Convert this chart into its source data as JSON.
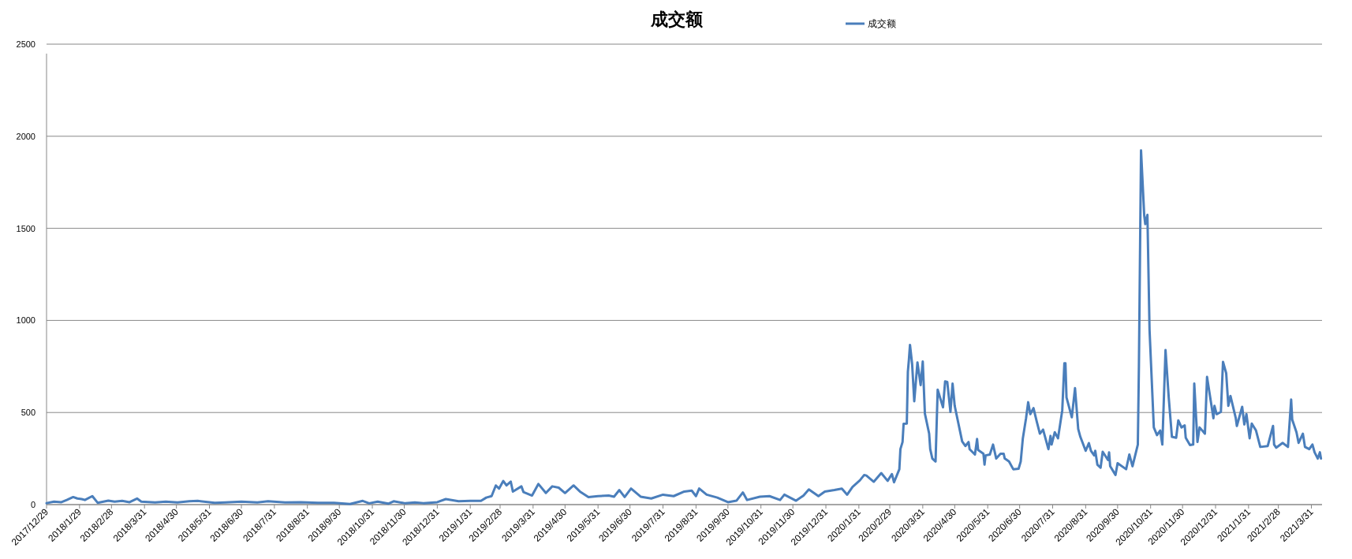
{
  "chart_data": {
    "type": "line",
    "title": "成交额",
    "legend": "top",
    "grid": "y",
    "xlim": [
      "2017-12-29",
      "2021-04-10"
    ],
    "ylim": [
      0,
      2500
    ],
    "yticks": [
      0,
      500,
      1000,
      1500,
      2000,
      2500
    ],
    "xticks": [
      {
        "value": "2017-12-29",
        "label": "2017/12/29"
      },
      {
        "value": "2018-01-29",
        "label": "2018/1/29"
      },
      {
        "value": "2018-02-28",
        "label": "2018/2/28"
      },
      {
        "value": "2018-03-31",
        "label": "2018/3/31"
      },
      {
        "value": "2018-04-30",
        "label": "2018/4/30"
      },
      {
        "value": "2018-05-31",
        "label": "2018/5/31"
      },
      {
        "value": "2018-06-30",
        "label": "2018/6/30"
      },
      {
        "value": "2018-07-31",
        "label": "2018/7/31"
      },
      {
        "value": "2018-08-31",
        "label": "2018/8/31"
      },
      {
        "value": "2018-09-30",
        "label": "2018/9/30"
      },
      {
        "value": "2018-10-31",
        "label": "2018/10/31"
      },
      {
        "value": "2018-11-30",
        "label": "2018/11/30"
      },
      {
        "value": "2018-12-31",
        "label": "2018/12/31"
      },
      {
        "value": "2019-01-31",
        "label": "2019/1/31"
      },
      {
        "value": "2019-02-28",
        "label": "2019/2/28"
      },
      {
        "value": "2019-03-31",
        "label": "2019/3/31"
      },
      {
        "value": "2019-04-30",
        "label": "2019/4/30"
      },
      {
        "value": "2019-05-31",
        "label": "2019/5/31"
      },
      {
        "value": "2019-06-30",
        "label": "2019/6/30"
      },
      {
        "value": "2019-07-31",
        "label": "2019/7/31"
      },
      {
        "value": "2019-08-31",
        "label": "2019/8/31"
      },
      {
        "value": "2019-09-30",
        "label": "2019/9/30"
      },
      {
        "value": "2019-10-31",
        "label": "2019/10/31"
      },
      {
        "value": "2019-11-30",
        "label": "2019/11/30"
      },
      {
        "value": "2019-12-31",
        "label": "2019/12/31"
      },
      {
        "value": "2020-01-31",
        "label": "2020/1/31"
      },
      {
        "value": "2020-02-29",
        "label": "2020/2/29"
      },
      {
        "value": "2020-03-31",
        "label": "2020/3/31"
      },
      {
        "value": "2020-04-30",
        "label": "2020/4/30"
      },
      {
        "value": "2020-05-31",
        "label": "2020/5/31"
      },
      {
        "value": "2020-06-30",
        "label": "2020/6/30"
      },
      {
        "value": "2020-07-31",
        "label": "2020/7/31"
      },
      {
        "value": "2020-08-31",
        "label": "2020/8/31"
      },
      {
        "value": "2020-09-30",
        "label": "2020/9/30"
      },
      {
        "value": "2020-10-31",
        "label": "2020/10/31"
      },
      {
        "value": "2020-11-30",
        "label": "2020/11/30"
      },
      {
        "value": "2020-12-31",
        "label": "2020/12/31"
      },
      {
        "value": "2021-01-31",
        "label": "2021/1/31"
      },
      {
        "value": "2021-02-28",
        "label": "2021/2/28"
      },
      {
        "value": "2021-03-31",
        "label": "2021/3/31"
      }
    ],
    "series": [
      {
        "name": "成交额",
        "color": "#4a7ebb",
        "x": [
          "2017-12-29",
          "2018-01-05",
          "2018-01-12",
          "2018-01-17",
          "2018-01-23",
          "2018-01-27",
          "2018-01-31",
          "2018-02-03",
          "2018-02-10",
          "2018-02-15",
          "2018-02-25",
          "2018-03-03",
          "2018-03-10",
          "2018-03-17",
          "2018-03-24",
          "2018-03-28",
          "2018-04-10",
          "2018-04-20",
          "2018-05-01",
          "2018-05-12",
          "2018-05-20",
          "2018-06-05",
          "2018-06-15",
          "2018-06-30",
          "2018-07-15",
          "2018-07-25",
          "2018-08-10",
          "2018-08-25",
          "2018-09-10",
          "2018-09-25",
          "2018-10-10",
          "2018-10-22",
          "2018-10-28",
          "2018-11-05",
          "2018-11-15",
          "2018-11-20",
          "2018-12-01",
          "2018-12-10",
          "2018-12-18",
          "2018-12-31",
          "2019-01-08",
          "2019-01-20",
          "2019-01-31",
          "2019-02-10",
          "2019-02-15",
          "2019-02-20",
          "2019-02-24",
          "2019-02-27",
          "2019-03-03",
          "2019-03-06",
          "2019-03-10",
          "2019-03-12",
          "2019-03-20",
          "2019-03-22",
          "2019-03-30",
          "2019-04-05",
          "2019-04-12",
          "2019-04-18",
          "2019-04-24",
          "2019-04-30",
          "2019-05-08",
          "2019-05-14",
          "2019-05-22",
          "2019-05-31",
          "2019-06-10",
          "2019-06-15",
          "2019-06-20",
          "2019-06-25",
          "2019-07-01",
          "2019-07-10",
          "2019-07-20",
          "2019-07-31",
          "2019-08-10",
          "2019-08-20",
          "2019-08-27",
          "2019-08-31",
          "2019-09-03",
          "2019-09-10",
          "2019-09-20",
          "2019-09-30",
          "2019-10-08",
          "2019-10-14",
          "2019-10-18",
          "2019-10-30",
          "2019-11-08",
          "2019-11-18",
          "2019-11-22",
          "2019-12-03",
          "2019-12-10",
          "2019-12-15",
          "2019-12-24",
          "2019-12-30",
          "2020-01-08",
          "2020-01-15",
          "2020-01-20",
          "2020-01-25",
          "2020-02-01",
          "2020-02-05",
          "2020-02-07",
          "2020-02-14",
          "2020-02-21",
          "2020-02-27",
          "2020-03-02",
          "2020-03-04",
          "2020-03-09",
          "2020-03-10",
          "2020-03-12",
          "2020-03-13",
          "2020-03-16",
          "2020-03-17",
          "2020-03-18",
          "2020-03-19",
          "2020-03-21",
          "2020-03-23",
          "2020-03-26",
          "2020-03-29",
          "2020-03-31",
          "2020-04-02",
          "2020-04-06",
          "2020-04-07",
          "2020-04-09",
          "2020-04-12",
          "2020-04-14",
          "2020-04-19",
          "2020-04-21",
          "2020-04-23",
          "2020-04-26",
          "2020-04-28",
          "2020-04-30",
          "2020-05-07",
          "2020-05-10",
          "2020-05-13",
          "2020-05-14",
          "2020-05-19",
          "2020-05-21",
          "2020-05-22",
          "2020-05-27",
          "2020-05-28",
          "2020-05-29",
          "2020-06-02",
          "2020-06-05",
          "2020-06-08",
          "2020-06-12",
          "2020-06-15",
          "2020-06-16",
          "2020-06-20",
          "2020-06-24",
          "2020-06-29",
          "2020-07-01",
          "2020-07-03",
          "2020-07-06",
          "2020-07-08",
          "2020-07-10",
          "2020-07-13",
          "2020-07-16",
          "2020-07-19",
          "2020-07-22",
          "2020-07-27",
          "2020-07-29",
          "2020-07-30",
          "2020-08-02",
          "2020-08-05",
          "2020-08-09",
          "2020-08-11",
          "2020-08-12",
          "2020-08-13",
          "2020-08-18",
          "2020-08-21",
          "2020-08-24",
          "2020-08-26",
          "2020-08-31",
          "2020-09-03",
          "2020-09-05",
          "2020-09-08",
          "2020-09-09",
          "2020-09-11",
          "2020-09-14",
          "2020-09-16",
          "2020-09-21",
          "2020-09-22",
          "2020-09-23",
          "2020-09-28",
          "2020-09-30",
          "2020-10-08",
          "2020-10-11",
          "2020-10-14",
          "2020-10-19",
          "2020-10-20",
          "2020-10-22",
          "2020-10-25",
          "2020-10-26",
          "2020-10-28",
          "2020-10-30",
          "2020-11-03",
          "2020-11-06",
          "2020-11-09",
          "2020-11-11",
          "2020-11-14",
          "2020-11-17",
          "2020-11-20",
          "2020-11-24",
          "2020-11-26",
          "2020-11-29",
          "2020-12-02",
          "2020-12-03",
          "2020-12-07",
          "2020-12-10",
          "2020-12-11",
          "2020-12-14",
          "2020-12-16",
          "2020-12-21",
          "2020-12-23",
          "2020-12-29",
          "2020-12-30",
          "2021-01-01",
          "2021-01-05",
          "2021-01-07",
          "2021-01-10",
          "2021-01-12",
          "2021-01-14",
          "2021-01-19",
          "2021-01-20",
          "2021-01-25",
          "2021-01-27",
          "2021-01-29",
          "2021-02-01",
          "2021-02-03",
          "2021-02-07",
          "2021-02-11",
          "2021-02-18",
          "2021-02-23",
          "2021-02-24",
          "2021-02-26",
          "2021-03-04",
          "2021-03-09",
          "2021-03-12",
          "2021-03-13",
          "2021-03-17",
          "2021-03-19",
          "2021-03-23",
          "2021-03-25",
          "2021-03-29",
          "2021-04-01",
          "2021-04-03",
          "2021-04-06",
          "2021-04-08",
          "2021-04-09"
        ],
        "values": [
          8,
          16,
          13,
          25,
          41,
          33,
          30,
          25,
          46,
          10,
          21,
          16,
          20,
          13,
          33,
          16,
          12,
          16,
          12,
          18,
          20,
          10,
          12,
          16,
          12,
          18,
          12,
          13,
          10,
          10,
          3,
          20,
          7,
          16,
          5,
          18,
          7,
          12,
          8,
          13,
          30,
          18,
          20,
          20,
          38,
          46,
          104,
          87,
          128,
          104,
          125,
          71,
          99,
          68,
          49,
          112,
          63,
          99,
          92,
          63,
          104,
          71,
          41,
          46,
          49,
          43,
          79,
          41,
          87,
          43,
          33,
          54,
          46,
          71,
          76,
          46,
          87,
          54,
          38,
          13,
          21,
          66,
          25,
          43,
          46,
          25,
          54,
          21,
          49,
          82,
          46,
          71,
          79,
          87,
          54,
          96,
          132,
          161,
          158,
          124,
          171,
          129,
          166,
          121,
          192,
          301,
          340,
          439,
          440,
          721,
          788,
          867,
          763,
          561,
          772,
          649,
          777,
          494,
          385,
          301,
          250,
          234,
          624,
          528,
          669,
          666,
          503,
          657,
          536,
          343,
          318,
          340,
          301,
          272,
          356,
          296,
          276,
          217,
          267,
          272,
          326,
          250,
          276,
          276,
          250,
          234,
          192,
          195,
          234,
          360,
          469,
          556,
          491,
          524,
          452,
          385,
          407,
          301,
          373,
          326,
          393,
          360,
          511,
          767,
          767,
          582,
          474,
          632,
          410,
          368,
          292,
          334,
          292,
          267,
          292,
          217,
          200,
          287,
          242,
          284,
          209,
          161,
          225,
          192,
          272,
          208,
          326,
          746,
          1923,
          1570,
          1523,
          1573,
          948,
          419,
          377,
          402,
          326,
          839,
          583,
          368,
          363,
          457,
          419,
          430,
          363,
          323,
          326,
          657,
          340,
          419,
          385,
          693,
          469,
          536,
          491,
          503,
          775,
          713,
          536,
          590,
          469,
          427,
          531,
          435,
          491,
          360,
          440,
          402,
          313,
          318,
          427,
          326,
          309,
          335,
          313,
          570,
          461,
          393,
          335,
          385,
          313,
          301,
          326,
          284,
          250,
          284,
          250
        ]
      }
    ]
  }
}
